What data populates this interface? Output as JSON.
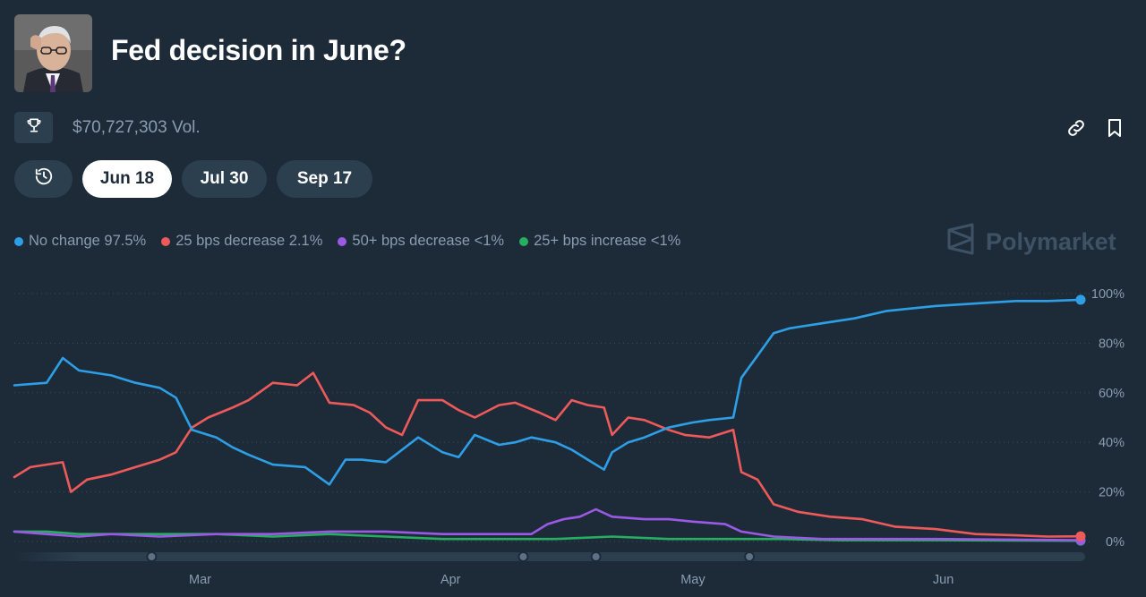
{
  "market": {
    "title": "Fed decision in June?",
    "volume": "$70,727,303 Vol."
  },
  "icons": {
    "trophy": "trophy-icon",
    "link": "link-icon",
    "bookmark": "bookmark-icon",
    "history": "history-icon",
    "brand": "polymarket-logo-icon"
  },
  "date_tabs": [
    {
      "label": "Jun 18",
      "active": true
    },
    {
      "label": "Jul 30",
      "active": false
    },
    {
      "label": "Sep 17",
      "active": false
    }
  ],
  "brand": "Polymarket",
  "legend": [
    {
      "label": "No change 97.5%",
      "color": "#2e9fe6"
    },
    {
      "label": "25 bps decrease 2.1%",
      "color": "#ee5a5a"
    },
    {
      "label": "50+ bps decrease <1%",
      "color": "#9b59e6"
    },
    {
      "label": "25+ bps increase <1%",
      "color": "#27ae60"
    }
  ],
  "chart_data": {
    "type": "line",
    "x_tick_labels": [
      "Mar",
      "Apr",
      "May",
      "Jun"
    ],
    "y_tick_labels": [
      "100%",
      "80%",
      "60%",
      "40%",
      "20%",
      "0%"
    ],
    "ylim": [
      0,
      100
    ],
    "xlim": [
      "2025-02-06",
      "2025-06-18"
    ],
    "grid": true,
    "series": [
      {
        "name": "No change",
        "color": "#2e9fe6",
        "points": [
          [
            "2025-02-06",
            63
          ],
          [
            "2025-02-10",
            64
          ],
          [
            "2025-02-12",
            74
          ],
          [
            "2025-02-14",
            69
          ],
          [
            "2025-02-18",
            67
          ],
          [
            "2025-02-21",
            64
          ],
          [
            "2025-02-24",
            62
          ],
          [
            "2025-02-26",
            58
          ],
          [
            "2025-02-28",
            45
          ],
          [
            "2025-03-03",
            42
          ],
          [
            "2025-03-05",
            38
          ],
          [
            "2025-03-07",
            35
          ],
          [
            "2025-03-10",
            31
          ],
          [
            "2025-03-14",
            30
          ],
          [
            "2025-03-17",
            23
          ],
          [
            "2025-03-19",
            33
          ],
          [
            "2025-03-21",
            33
          ],
          [
            "2025-03-24",
            32
          ],
          [
            "2025-03-26",
            37
          ],
          [
            "2025-03-28",
            42
          ],
          [
            "2025-03-31",
            36
          ],
          [
            "2025-04-02",
            34
          ],
          [
            "2025-04-04",
            43
          ],
          [
            "2025-04-07",
            39
          ],
          [
            "2025-04-09",
            40
          ],
          [
            "2025-04-11",
            42
          ],
          [
            "2025-04-14",
            40
          ],
          [
            "2025-04-16",
            37
          ],
          [
            "2025-04-18",
            33
          ],
          [
            "2025-04-20",
            29
          ],
          [
            "2025-04-21",
            36
          ],
          [
            "2025-04-23",
            40
          ],
          [
            "2025-04-25",
            42
          ],
          [
            "2025-04-28",
            46
          ],
          [
            "2025-05-01",
            48
          ],
          [
            "2025-05-03",
            49
          ],
          [
            "2025-05-06",
            50
          ],
          [
            "2025-05-07",
            66
          ],
          [
            "2025-05-09",
            75
          ],
          [
            "2025-05-11",
            84
          ],
          [
            "2025-05-13",
            86
          ],
          [
            "2025-05-17",
            88
          ],
          [
            "2025-05-21",
            90
          ],
          [
            "2025-05-25",
            93
          ],
          [
            "2025-05-31",
            95
          ],
          [
            "2025-06-05",
            96
          ],
          [
            "2025-06-10",
            97
          ],
          [
            "2025-06-14",
            97
          ],
          [
            "2025-06-18",
            97.5
          ]
        ]
      },
      {
        "name": "25 bps decrease",
        "color": "#ee5a5a",
        "points": [
          [
            "2025-02-06",
            26
          ],
          [
            "2025-02-08",
            30
          ],
          [
            "2025-02-12",
            32
          ],
          [
            "2025-02-13",
            20
          ],
          [
            "2025-02-15",
            25
          ],
          [
            "2025-02-18",
            27
          ],
          [
            "2025-02-21",
            30
          ],
          [
            "2025-02-24",
            33
          ],
          [
            "2025-02-26",
            36
          ],
          [
            "2025-02-28",
            46
          ],
          [
            "2025-03-02",
            50
          ],
          [
            "2025-03-05",
            54
          ],
          [
            "2025-03-07",
            57
          ],
          [
            "2025-03-10",
            64
          ],
          [
            "2025-03-13",
            63
          ],
          [
            "2025-03-15",
            68
          ],
          [
            "2025-03-17",
            56
          ],
          [
            "2025-03-20",
            55
          ],
          [
            "2025-03-22",
            52
          ],
          [
            "2025-03-24",
            46
          ],
          [
            "2025-03-26",
            43
          ],
          [
            "2025-03-28",
            57
          ],
          [
            "2025-03-31",
            57
          ],
          [
            "2025-04-02",
            53
          ],
          [
            "2025-04-04",
            50
          ],
          [
            "2025-04-07",
            55
          ],
          [
            "2025-04-09",
            56
          ],
          [
            "2025-04-12",
            52
          ],
          [
            "2025-04-14",
            49
          ],
          [
            "2025-04-16",
            57
          ],
          [
            "2025-04-18",
            55
          ],
          [
            "2025-04-20",
            54
          ],
          [
            "2025-04-21",
            43
          ],
          [
            "2025-04-23",
            50
          ],
          [
            "2025-04-25",
            49
          ],
          [
            "2025-04-28",
            45
          ],
          [
            "2025-04-30",
            43
          ],
          [
            "2025-05-03",
            42
          ],
          [
            "2025-05-06",
            45
          ],
          [
            "2025-05-07",
            28
          ],
          [
            "2025-05-09",
            25
          ],
          [
            "2025-05-11",
            15
          ],
          [
            "2025-05-14",
            12
          ],
          [
            "2025-05-18",
            10
          ],
          [
            "2025-05-22",
            9
          ],
          [
            "2025-05-26",
            6
          ],
          [
            "2025-05-31",
            5
          ],
          [
            "2025-06-05",
            3
          ],
          [
            "2025-06-10",
            2.5
          ],
          [
            "2025-06-14",
            2
          ],
          [
            "2025-06-18",
            2.1
          ]
        ]
      },
      {
        "name": "50+ bps decrease",
        "color": "#9b59e6",
        "points": [
          [
            "2025-02-06",
            4
          ],
          [
            "2025-02-10",
            3
          ],
          [
            "2025-02-14",
            2
          ],
          [
            "2025-02-18",
            3
          ],
          [
            "2025-02-24",
            2
          ],
          [
            "2025-03-03",
            3
          ],
          [
            "2025-03-10",
            3
          ],
          [
            "2025-03-17",
            4
          ],
          [
            "2025-03-24",
            4
          ],
          [
            "2025-03-31",
            3
          ],
          [
            "2025-04-07",
            3
          ],
          [
            "2025-04-11",
            3
          ],
          [
            "2025-04-13",
            7
          ],
          [
            "2025-04-15",
            9
          ],
          [
            "2025-04-17",
            10
          ],
          [
            "2025-04-19",
            13
          ],
          [
            "2025-04-21",
            10
          ],
          [
            "2025-04-25",
            9
          ],
          [
            "2025-04-28",
            9
          ],
          [
            "2025-05-01",
            8
          ],
          [
            "2025-05-05",
            7
          ],
          [
            "2025-05-07",
            4
          ],
          [
            "2025-05-11",
            2
          ],
          [
            "2025-05-17",
            1
          ],
          [
            "2025-05-31",
            1
          ],
          [
            "2025-06-18",
            0.5
          ]
        ]
      },
      {
        "name": "25+ bps increase",
        "color": "#27ae60",
        "points": [
          [
            "2025-02-06",
            4
          ],
          [
            "2025-02-10",
            4
          ],
          [
            "2025-02-14",
            3
          ],
          [
            "2025-02-21",
            3
          ],
          [
            "2025-03-03",
            3
          ],
          [
            "2025-03-10",
            2
          ],
          [
            "2025-03-17",
            3
          ],
          [
            "2025-03-24",
            2
          ],
          [
            "2025-03-31",
            1
          ],
          [
            "2025-04-07",
            1
          ],
          [
            "2025-04-14",
            1
          ],
          [
            "2025-04-21",
            2
          ],
          [
            "2025-04-28",
            1
          ],
          [
            "2025-05-05",
            1
          ],
          [
            "2025-05-12",
            1
          ],
          [
            "2025-05-19",
            0.5
          ],
          [
            "2025-05-31",
            0.5
          ],
          [
            "2025-06-18",
            0.3
          ]
        ]
      }
    ]
  }
}
